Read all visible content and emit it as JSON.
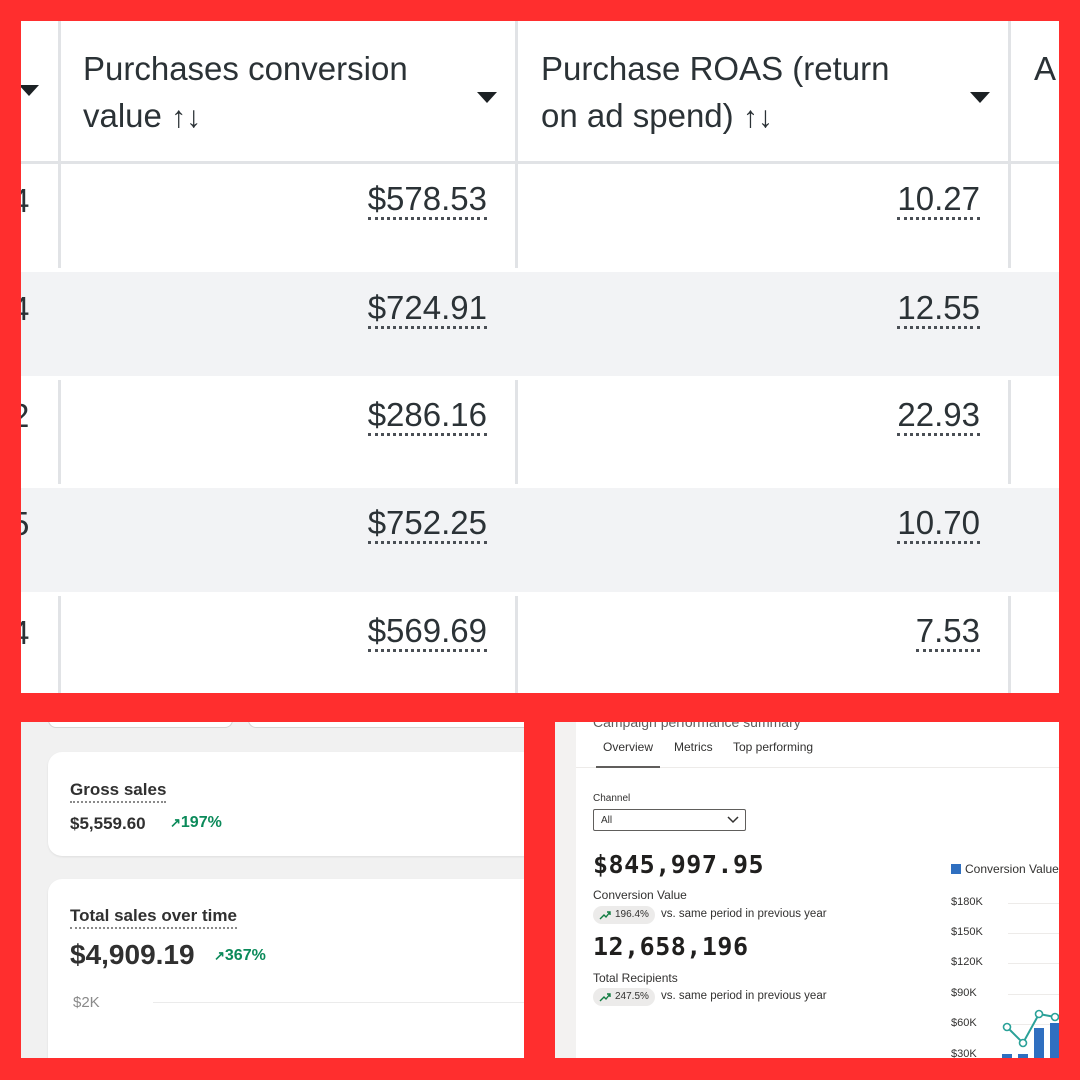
{
  "table": {
    "columns": [
      {
        "line1": "Purchases conversion",
        "line2": "value",
        "sort": "↑↓"
      },
      {
        "line1": "Purchase ROAS (return",
        "line2": "on ad spend)",
        "sort": "↑↓"
      },
      {
        "line1": "A"
      }
    ],
    "rows": [
      {
        "left_cut": "4",
        "conversion_value": "$578.53",
        "roas": "10.27"
      },
      {
        "left_cut": "4",
        "conversion_value": "$724.91",
        "roas": "12.55"
      },
      {
        "left_cut": "2",
        "conversion_value": "$286.16",
        "roas": "22.93"
      },
      {
        "left_cut": "5",
        "conversion_value": "$752.25",
        "roas": "10.70"
      },
      {
        "left_cut": "4",
        "conversion_value": "$569.69",
        "roas": "7.53"
      }
    ]
  },
  "store": {
    "gross_sales": {
      "title": "Gross sales",
      "value": "$5,559.60",
      "change": "197%"
    },
    "total_sales": {
      "title": "Total sales over time",
      "value": "$4,909.19",
      "change": "367%",
      "axis_tick": "$2K"
    }
  },
  "campaign": {
    "cut_title": "Campaign performance summary",
    "tabs": [
      "Overview",
      "Metrics",
      "Top performing"
    ],
    "channel_label": "Channel",
    "channel_value": "All",
    "conversion_value": "$845,997.95",
    "conversion_label": "Conversion Value",
    "conversion_change": "196.4%",
    "recipients_value": "12,658,196",
    "recipients_label": "Total Recipients",
    "recipients_change": "247.5%",
    "comparison_text": "vs. same period in previous year",
    "chart": {
      "legend": "Conversion Value",
      "yticks": [
        "$180K",
        "$150K",
        "$120K",
        "$90K",
        "$60K",
        "$30K"
      ],
      "colors": {
        "bar": "#2f6fc0",
        "line": "#2aa198"
      }
    }
  },
  "colors": {
    "frame": "#ff2e2e",
    "positive": "#0b8a5a"
  }
}
